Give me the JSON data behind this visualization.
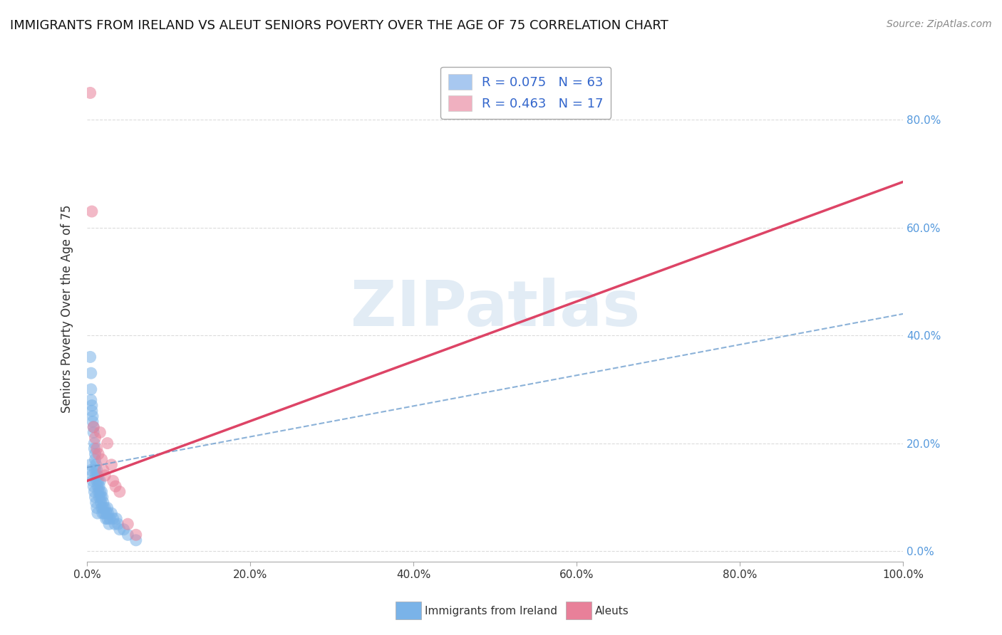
{
  "title": "IMMIGRANTS FROM IRELAND VS ALEUT SENIORS POVERTY OVER THE AGE OF 75 CORRELATION CHART",
  "source": "Source: ZipAtlas.com",
  "ylabel": "Seniors Poverty Over the Age of 75",
  "xlim": [
    0.0,
    1.0
  ],
  "ylim": [
    -0.02,
    0.92
  ],
  "x_ticks": [
    0.0,
    0.2,
    0.4,
    0.6,
    0.8,
    1.0
  ],
  "x_tick_labels": [
    "0.0%",
    "20.0%",
    "40.0%",
    "60.0%",
    "80.0%",
    "100.0%"
  ],
  "y_ticks": [
    0.0,
    0.2,
    0.4,
    0.6,
    0.8
  ],
  "y_tick_labels": [
    "0.0%",
    "20.0%",
    "40.0%",
    "60.0%",
    "80.0%"
  ],
  "legend_entries": [
    {
      "label": "R = 0.075   N = 63",
      "color": "#a8c8f0"
    },
    {
      "label": "R = 0.463   N = 17",
      "color": "#f0b0c0"
    }
  ],
  "blue_dots_x": [
    0.004,
    0.005,
    0.005,
    0.005,
    0.006,
    0.006,
    0.007,
    0.007,
    0.008,
    0.008,
    0.009,
    0.009,
    0.01,
    0.01,
    0.01,
    0.011,
    0.011,
    0.012,
    0.012,
    0.013,
    0.013,
    0.014,
    0.014,
    0.015,
    0.015,
    0.016,
    0.016,
    0.017,
    0.017,
    0.018,
    0.018,
    0.019,
    0.019,
    0.02,
    0.02,
    0.021,
    0.022,
    0.023,
    0.024,
    0.025,
    0.025,
    0.026,
    0.027,
    0.028,
    0.03,
    0.032,
    0.034,
    0.036,
    0.038,
    0.04,
    0.004,
    0.005,
    0.006,
    0.007,
    0.008,
    0.009,
    0.01,
    0.011,
    0.012,
    0.013,
    0.045,
    0.05,
    0.06
  ],
  "blue_dots_y": [
    0.36,
    0.33,
    0.3,
    0.28,
    0.27,
    0.26,
    0.25,
    0.24,
    0.23,
    0.22,
    0.2,
    0.19,
    0.18,
    0.17,
    0.15,
    0.16,
    0.14,
    0.15,
    0.13,
    0.14,
    0.12,
    0.13,
    0.11,
    0.12,
    0.1,
    0.13,
    0.11,
    0.1,
    0.09,
    0.11,
    0.08,
    0.1,
    0.07,
    0.09,
    0.08,
    0.07,
    0.08,
    0.06,
    0.07,
    0.08,
    0.06,
    0.07,
    0.05,
    0.06,
    0.07,
    0.06,
    0.05,
    0.06,
    0.05,
    0.04,
    0.16,
    0.15,
    0.14,
    0.13,
    0.12,
    0.11,
    0.1,
    0.09,
    0.08,
    0.07,
    0.04,
    0.03,
    0.02
  ],
  "pink_dots_x": [
    0.004,
    0.006,
    0.008,
    0.01,
    0.012,
    0.014,
    0.016,
    0.018,
    0.02,
    0.022,
    0.025,
    0.03,
    0.032,
    0.035,
    0.04,
    0.05,
    0.06
  ],
  "pink_dots_y": [
    0.85,
    0.63,
    0.23,
    0.21,
    0.19,
    0.18,
    0.22,
    0.17,
    0.15,
    0.14,
    0.2,
    0.16,
    0.13,
    0.12,
    0.11,
    0.05,
    0.03
  ],
  "blue_line_y_intercept": 0.155,
  "blue_line_slope": 0.285,
  "pink_line_y_intercept": 0.13,
  "pink_line_slope": 0.555,
  "blue_color": "#7ab3e8",
  "pink_color": "#e88099",
  "blue_line_color": "#6699cc",
  "pink_line_color": "#dd4466",
  "watermark": "ZIPatlas",
  "background_color": "#ffffff",
  "grid_color": "#cccccc",
  "title_fontsize": 13,
  "source_fontsize": 10,
  "tick_fontsize": 11,
  "ylabel_fontsize": 12
}
